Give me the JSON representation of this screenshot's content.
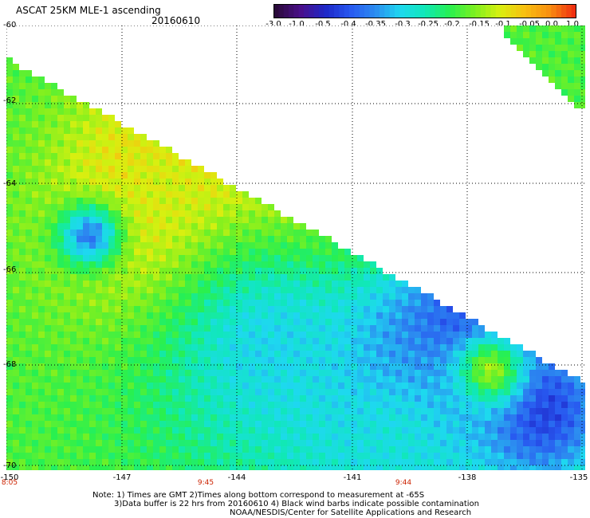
{
  "header": {
    "title": "ASCAT 25KM MLE-1 ascending",
    "date": "20160610"
  },
  "colorbar": {
    "labels": [
      "-3.0",
      "-1.0",
      "-0.5",
      "-0.4",
      "-0.35",
      "-0.3",
      "-0.25",
      "-0.2",
      "-0.15",
      "-0.1",
      "-0.05",
      "0.0",
      "1.0"
    ],
    "colors": [
      "#2a0a3a",
      "#4a0f8a",
      "#1e28c8",
      "#2858f0",
      "#2c8cf0",
      "#1ed8f0",
      "#10e8b8",
      "#28f050",
      "#7cf020",
      "#d8f010",
      "#f8c010",
      "#f89010",
      "#f03010"
    ]
  },
  "axes": {
    "y_labels": [
      "-60",
      "-62",
      "-64",
      "-66",
      "-68",
      "-70"
    ],
    "x_labels": [
      "-150",
      "-147",
      "-144",
      "-141",
      "-138",
      "-135"
    ],
    "time_labels": [
      "8:05",
      "9:45",
      "9:44"
    ]
  },
  "notes": {
    "line1": "Note: 1) Times are GMT 2)Times along bottom correspond to measurement at -65S",
    "line2": "3)Data buffer is 22 hrs from 20160610 4) Black wind barbs indicate possible contamination",
    "line3": "NOAA/NESDIS/Center for Satellite Applications and Research"
  }
}
